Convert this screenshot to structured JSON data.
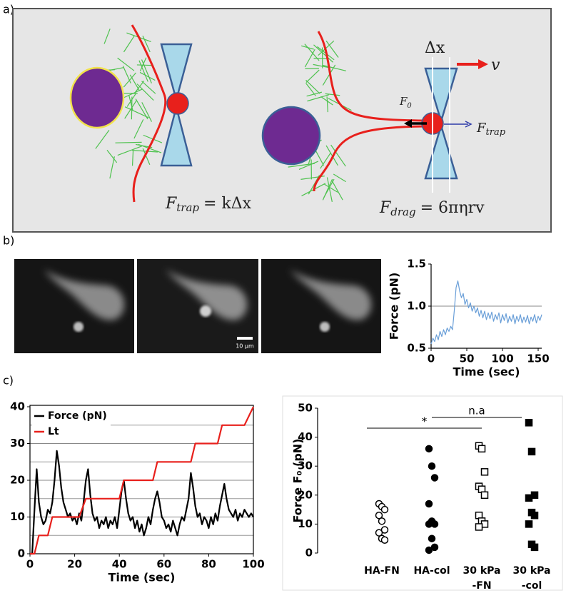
{
  "panels": {
    "a": "a)",
    "b": "b)",
    "c": "c)"
  },
  "diagram": {
    "eq_trap": {
      "f": "F",
      "sub": "trap",
      "rhs": "= kΔx"
    },
    "eq_drag": {
      "f": "F",
      "sub": "drag",
      "rhs": "= 6πηrv"
    },
    "delta_x": "Δx",
    "velocity": "v",
    "f0": {
      "f": "F",
      "sub": "0"
    },
    "f_trap": {
      "f": "F",
      "sub": "trap"
    }
  },
  "micrographs": {
    "scale_bar": "10 μm"
  },
  "chart_data": [
    {
      "type": "line",
      "ylabel": "Force (pN)",
      "xlabel": "Time (sec)",
      "xlim": [
        0,
        155
      ],
      "xticks": [
        0,
        50,
        100,
        150
      ],
      "ylim": [
        0.5,
        1.5
      ],
      "yticks": [
        0.5,
        {
          "value": 1,
          "label": "1.0"
        },
        1.5
      ],
      "grid": true,
      "x": [
        0,
        2.5,
        5,
        7.5,
        10,
        12.5,
        15,
        17.5,
        20,
        22.5,
        25,
        27.5,
        30,
        32.5,
        35,
        37.5,
        40,
        42.5,
        45,
        47.5,
        50,
        52.5,
        55,
        57.5,
        60,
        62.5,
        65,
        67.5,
        70,
        72.5,
        75,
        77.5,
        80,
        82.5,
        85,
        87.5,
        90,
        92.5,
        95,
        97.5,
        100,
        102.5,
        105,
        107.5,
        110,
        112.5,
        115,
        117.5,
        120,
        122.5,
        125,
        127.5,
        130,
        132.5,
        135,
        137.5,
        140,
        142.5,
        145,
        147.5,
        150,
        152.5,
        155
      ],
      "series": [
        {
          "color": "#6a9fd8",
          "values": [
            0.55,
            0.62,
            0.58,
            0.66,
            0.6,
            0.7,
            0.64,
            0.72,
            0.66,
            0.74,
            0.7,
            0.76,
            0.72,
            0.95,
            1.22,
            1.3,
            1.18,
            1.1,
            1.15,
            1.02,
            1.08,
            0.98,
            1.04,
            0.94,
            1.0,
            0.92,
            0.98,
            0.88,
            0.95,
            0.86,
            0.94,
            0.84,
            0.92,
            0.85,
            0.93,
            0.82,
            0.9,
            0.84,
            0.92,
            0.8,
            0.9,
            0.83,
            0.91,
            0.8,
            0.88,
            0.82,
            0.9,
            0.79,
            0.88,
            0.82,
            0.9,
            0.8,
            0.87,
            0.81,
            0.89,
            0.79,
            0.87,
            0.82,
            0.9,
            0.8,
            0.88,
            0.83,
            0.9
          ]
        }
      ]
    },
    {
      "type": "line",
      "xlabel": "Time (sec)",
      "xlim": [
        0,
        100
      ],
      "xticks": [
        0,
        20,
        40,
        60,
        80,
        100
      ],
      "ylim": [
        0,
        40
      ],
      "yticks": [
        0,
        10,
        20,
        30,
        40
      ],
      "minor_yticks": [
        5,
        15,
        25,
        35
      ],
      "grid": true,
      "legend": "top-left",
      "series": [
        {
          "name": "Force (pN)",
          "color": "#000000",
          "x": [
            0,
            1,
            2,
            3,
            4,
            5,
            6,
            7,
            8,
            9,
            10,
            11,
            12,
            13,
            14,
            15,
            16,
            17,
            18,
            19,
            20,
            21,
            22,
            23,
            24,
            25,
            26,
            27,
            28,
            29,
            30,
            31,
            32,
            33,
            34,
            35,
            36,
            37,
            38,
            39,
            40,
            41,
            42,
            43,
            44,
            45,
            46,
            47,
            48,
            49,
            50,
            51,
            52,
            53,
            54,
            55,
            56,
            57,
            58,
            59,
            60,
            61,
            62,
            63,
            64,
            65,
            66,
            67,
            68,
            69,
            70,
            71,
            72,
            73,
            74,
            75,
            76,
            77,
            78,
            79,
            80,
            81,
            82,
            83,
            84,
            85,
            86,
            87,
            88,
            89,
            90,
            91,
            92,
            93,
            94,
            95,
            96,
            97,
            98,
            99,
            100
          ],
          "values": [
            0,
            0,
            12,
            23,
            14,
            10,
            8,
            9,
            12,
            11,
            14,
            20,
            28,
            24,
            18,
            14,
            12,
            10,
            11,
            9,
            10,
            8,
            11,
            9,
            14,
            20,
            23,
            16,
            11,
            9,
            10,
            7,
            9,
            8,
            10,
            7,
            9,
            8,
            10,
            7,
            12,
            17,
            20,
            15,
            11,
            9,
            10,
            7,
            9,
            6,
            8,
            5,
            7,
            10,
            8,
            12,
            15,
            17,
            14,
            10,
            9,
            7,
            8,
            6,
            9,
            7,
            5,
            8,
            10,
            9,
            12,
            15,
            22,
            18,
            13,
            10,
            11,
            8,
            10,
            9,
            7,
            10,
            8,
            11,
            9,
            13,
            16,
            19,
            15,
            12,
            11,
            10,
            12,
            9,
            11,
            10,
            12,
            11,
            10,
            11,
            10
          ]
        },
        {
          "name": "Lt",
          "color": "#e8201c",
          "x": [
            0,
            2,
            4,
            8,
            10,
            22,
            25,
            40,
            42,
            55,
            57,
            72,
            74,
            84,
            86,
            96,
            100
          ],
          "values": [
            0,
            0,
            5,
            5,
            10,
            10,
            15,
            15,
            20,
            20,
            25,
            25,
            30,
            30,
            35,
            35,
            40
          ]
        }
      ]
    },
    {
      "type": "strip",
      "ylabel": "Force F₀ (pN)",
      "ylim": [
        0,
        50
      ],
      "yticks": [
        0,
        10,
        20,
        30,
        40,
        50
      ],
      "categories": [
        [
          "HA-FN"
        ],
        [
          "HA-col"
        ],
        [
          "30 kPa",
          "-FN"
        ],
        [
          "30 kPa",
          "-col"
        ]
      ],
      "markers": [
        "circle",
        "circle",
        "square",
        "square"
      ],
      "filled": [
        false,
        true,
        false,
        true
      ],
      "values": [
        [
          17,
          16,
          15,
          13,
          11,
          8,
          7,
          5,
          4.5
        ],
        [
          36,
          30,
          26,
          17,
          11,
          10,
          10,
          5,
          2,
          1
        ],
        [
          37,
          36,
          28,
          23,
          22,
          20,
          13,
          11,
          10,
          9
        ],
        [
          45,
          35,
          20,
          19,
          14,
          13,
          10,
          3,
          2
        ]
      ],
      "annotations": [
        {
          "text": "*"
        },
        {
          "text": "n.a"
        }
      ]
    }
  ]
}
